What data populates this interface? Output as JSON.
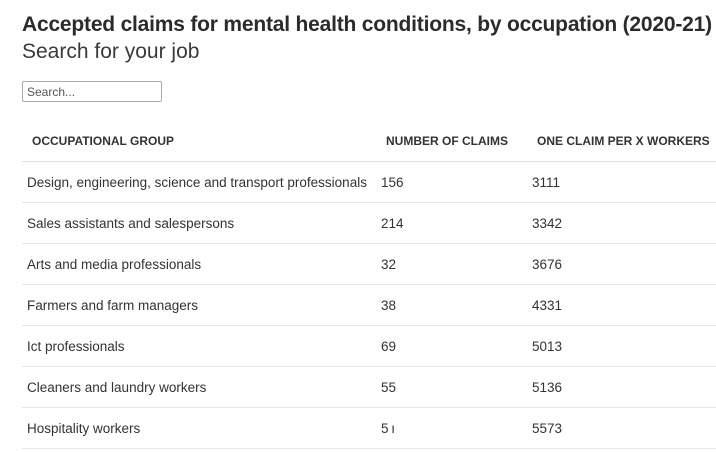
{
  "header": {
    "title": "Accepted claims for mental health conditions, by occupation (2020-21)",
    "subtitle": "Search for your job"
  },
  "search": {
    "placeholder": "Search...",
    "value": ""
  },
  "table": {
    "columns": [
      "OCCUPATIONAL GROUP",
      "NUMBER OF CLAIMS",
      "ONE CLAIM PER X WORKERS"
    ],
    "rows": [
      {
        "group": "Design, engineering, science and transport professionals",
        "claims": "156",
        "per_workers": "3111"
      },
      {
        "group": "Sales assistants and salespersons",
        "claims": "214",
        "per_workers": "3342"
      },
      {
        "group": "Arts and media professionals",
        "claims": "32",
        "per_workers": "3676"
      },
      {
        "group": "Farmers and farm managers",
        "claims": "38",
        "per_workers": "4331"
      },
      {
        "group": "Ict professionals",
        "claims": "69",
        "per_workers": "5013"
      },
      {
        "group": "Cleaners and laundry workers",
        "claims": "55",
        "per_workers": "5136"
      },
      {
        "group": "Hospitality workers",
        "claims": "5 ı",
        "per_workers": "5573"
      }
    ]
  }
}
